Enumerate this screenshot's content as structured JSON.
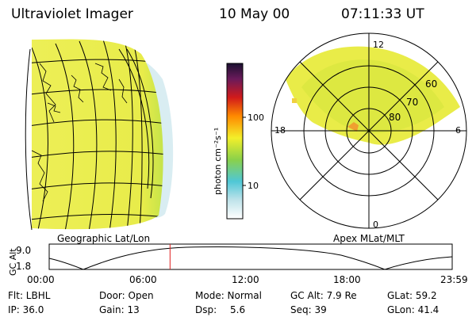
{
  "header": {
    "instrument": "Ultraviolet Imager",
    "date": "10 May 00",
    "time": "07:11:33 UT"
  },
  "colorbar": {
    "unit_label": "photon cm⁻²s⁻¹",
    "ticks": [
      "100",
      "10"
    ],
    "colors": [
      "#ffffff",
      "#4fc7d6",
      "#8ad14a",
      "#f3ef2a",
      "#ff8a00",
      "#d11a1a",
      "#6a1a5a",
      "#1a1030"
    ]
  },
  "polar_plot": {
    "mlt_labels": {
      "top": "12",
      "left": "18",
      "right": "6",
      "bottom": "0"
    },
    "lat_labels": [
      "60",
      "70",
      "80"
    ]
  },
  "map_captions": {
    "left": "Geographic Lat/Lon",
    "right": "Apex MLat/MLT"
  },
  "altitude_plot": {
    "ylabel": "GC Alt",
    "y_ticks": [
      "9.0",
      "1.8"
    ],
    "x_ticks": [
      "00:00",
      "06:00",
      "12:00",
      "18:00",
      "23:59"
    ],
    "cursor_time": "07:11:33",
    "marker_color": "#e02020"
  },
  "info": {
    "flt": "Flt: LBHL",
    "ip": "IP: 36.0",
    "door": "Door: Open",
    "gain": "Gain: 13",
    "mode": "Mode: Normal",
    "dsp_label": "Dsp:",
    "dsp_value": "5.6",
    "gc_alt": "GC Alt: 7.9 Re",
    "seq": "Seq: 39",
    "glat": "GLat:   59.2",
    "glon": "GLon:   41.4"
  }
}
